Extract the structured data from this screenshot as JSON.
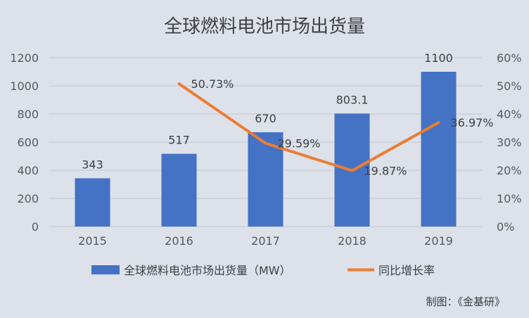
{
  "chart_data": {
    "type": "bar",
    "title": "全球燃料电池市场出货量",
    "categories": [
      "2015",
      "2016",
      "2017",
      "2018",
      "2019"
    ],
    "series": [
      {
        "name": "全球燃料电池市场出货量（MW）",
        "type": "bar",
        "axis": "left",
        "values": [
          343,
          517,
          670,
          803.1,
          1100
        ],
        "labels": [
          "343",
          "517",
          "670",
          "803.1",
          "1100"
        ],
        "color": "#4472c4"
      },
      {
        "name": "同比增长率",
        "type": "line",
        "axis": "right",
        "values": [
          null,
          50.73,
          29.59,
          19.87,
          36.97
        ],
        "labels": [
          null,
          "50.73%",
          "29.59%",
          "19.87%",
          "36.97%"
        ],
        "color": "#ed7d31"
      }
    ],
    "yleft": {
      "min": 0,
      "max": 1200,
      "ticks": [
        "0",
        "200",
        "400",
        "600",
        "800",
        "1000",
        "1200"
      ]
    },
    "yright": {
      "min": 0,
      "max": 60,
      "ticks": [
        "0%",
        "10%",
        "20%",
        "30%",
        "40%",
        "50%",
        "60%"
      ]
    },
    "grid": true,
    "legend": "bottom",
    "source": "制图：《金基研》"
  }
}
